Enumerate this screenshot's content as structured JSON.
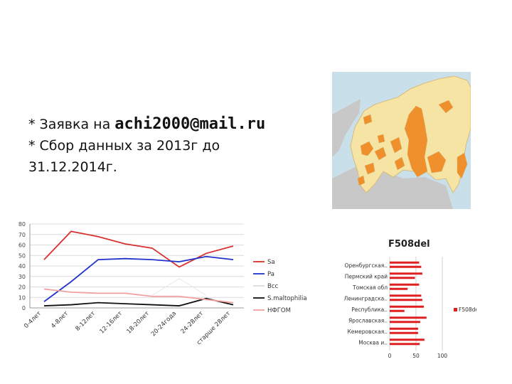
{
  "slide": {
    "bullet1_prefix": "*  Заявка на ",
    "bullet1_email": "achi2000@mail.ru",
    "bullet2": "*  Сбор данных за 2013г до",
    "bullet3": " 31.12.2014г."
  },
  "map": {
    "colors": {
      "sea": "#c9dfe9",
      "foreign": "#c8c8c8",
      "region": "#f6e4a5",
      "highlight": "#f0902c",
      "border": "#d6b36d"
    }
  },
  "chart_data": [
    {
      "type": "line",
      "categories": [
        "0-4лет",
        "4-8лет",
        "8-12лет",
        "12-16лет",
        "18-20лет",
        "20-24года",
        "24-28лет",
        "старше 28лет"
      ],
      "y_ticks": [
        "0",
        "10",
        "20",
        "30",
        "40",
        "50",
        "60",
        "70",
        "80"
      ],
      "ylim": [
        0,
        80
      ],
      "grid": true,
      "legend_position": "right",
      "series": [
        {
          "name": "Sa",
          "color": "#d93030",
          "values": [
            46,
            73,
            68,
            61,
            57,
            39,
            52,
            59
          ]
        },
        {
          "name": "Pa",
          "color": "#2233cc",
          "values": [
            6,
            25,
            46,
            47,
            46,
            44,
            49,
            46
          ]
        },
        {
          "name": "Bcc",
          "color": "#e8e8e8",
          "values": [
            null,
            null,
            null,
            null,
            12,
            28,
            12,
            null
          ]
        },
        {
          "name": "S.maltophilia",
          "color": "#111111",
          "values": [
            2,
            3,
            5,
            4,
            3,
            2,
            9,
            3
          ]
        },
        {
          "name": "НФГОМ",
          "color": "#f0a0a0",
          "values": [
            18,
            15,
            14,
            14,
            11,
            11,
            8,
            5
          ]
        }
      ]
    },
    {
      "type": "bar",
      "orientation": "horizontal",
      "title": "F508del",
      "categories": [
        "Оренбургская..",
        "Пермский край",
        "Томская обл",
        "Ленинградска..",
        "Республика..",
        "Ярославская..",
        "Кемеровская..",
        "Москва и.."
      ],
      "values": [
        60,
        48,
        34,
        62,
        28,
        58,
        54,
        57
      ],
      "values_secondary": [
        56,
        62,
        56,
        60,
        65,
        70,
        54,
        66
      ],
      "x_ticks": [
        "0",
        "50",
        "100"
      ],
      "xlim": [
        0,
        100
      ],
      "legend": "F508del",
      "color": "#e02020"
    }
  ]
}
